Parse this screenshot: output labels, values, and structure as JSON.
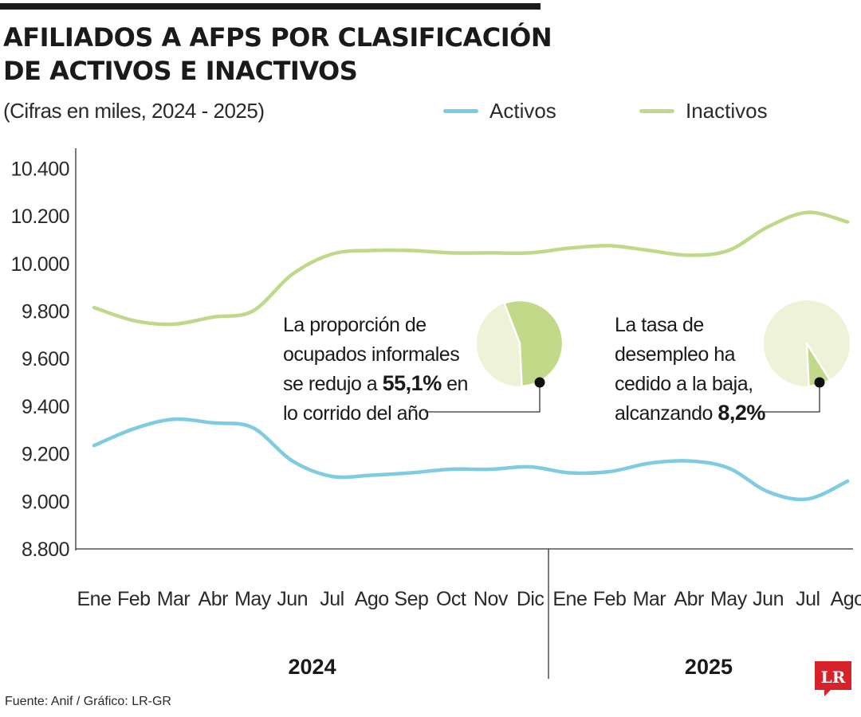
{
  "title_lines": [
    "AFILIADOS A AFPS POR CLASIFICACIÓN",
    "DE ACTIVOS E INACTIVOS"
  ],
  "subtitle": "(Cifras en miles, 2024 - 2025)",
  "source": "Fuente: Anif / Gráfico: LR-GR",
  "logo_text": "LR",
  "colors": {
    "activos": "#7fcce0",
    "inactivos": "#bfd98a",
    "axis": "#333333",
    "pie_light": "#eef2d6",
    "pie_dark": "#c2d98a",
    "logo": "#d6232b"
  },
  "annotations": [
    {
      "lines": [
        [
          {
            "t": "La proporción de",
            "b": false
          }
        ],
        [
          {
            "t": "ocupados informales",
            "b": false
          }
        ],
        [
          {
            "t": "se redujo a ",
            "b": false
          },
          {
            "t": "55,1%",
            "b": true
          },
          {
            "t": " en",
            "b": false
          }
        ],
        [
          {
            "t": "lo corrido del año",
            "b": false
          }
        ]
      ],
      "pie_percent": 55.1
    },
    {
      "lines": [
        [
          {
            "t": "La tasa de",
            "b": false
          }
        ],
        [
          {
            "t": "desempleo ha",
            "b": false
          }
        ],
        [
          {
            "t": "cedido a la baja,",
            "b": false
          }
        ],
        [
          {
            "t": "alcanzando ",
            "b": false
          },
          {
            "t": "8,2%",
            "b": true
          }
        ]
      ],
      "pie_percent": 8.2
    }
  ],
  "chart_data": {
    "type": "line",
    "title": "AFILIADOS A AFPS POR CLASIFICACIÓN DE ACTIVOS E INACTIVOS",
    "subtitle": "(Cifras en miles, 2024 - 2025)",
    "xlabel": "",
    "ylabel": "",
    "categories": [
      "Ene",
      "Feb",
      "Mar",
      "Abr",
      "May",
      "Jun",
      "Jul",
      "Ago",
      "Sep",
      "Oct",
      "Nov",
      "Dic",
      "Ene",
      "Feb",
      "Mar",
      "Abr",
      "May",
      "Jun",
      "Jul",
      "Ago"
    ],
    "year_groups": [
      {
        "label": "2024",
        "from": 0,
        "to": 11
      },
      {
        "label": "2025",
        "from": 12,
        "to": 19
      }
    ],
    "yticks": [
      8800,
      9000,
      9200,
      9400,
      9600,
      9800,
      10000,
      10200,
      10400
    ],
    "ytick_labels": [
      "8.800",
      "9.000",
      "9.200",
      "9.400",
      "9.600",
      "9.800",
      "10.000",
      "10.200",
      "10.400"
    ],
    "ylim": [
      8800,
      10400
    ],
    "legend_position": "top-right",
    "grid": false,
    "series": [
      {
        "name": "Activos",
        "values": [
          9235,
          9305,
          9345,
          9330,
          9310,
          9170,
          9105,
          9110,
          9120,
          9135,
          9135,
          9145,
          9120,
          9125,
          9160,
          9170,
          9140,
          9040,
          9010,
          9085
        ]
      },
      {
        "name": "Inactivos",
        "values": [
          9815,
          9760,
          9745,
          9775,
          9800,
          9955,
          10040,
          10055,
          10055,
          10045,
          10045,
          10045,
          10065,
          10075,
          10055,
          10035,
          10055,
          10155,
          10215,
          10175
        ]
      }
    ]
  }
}
